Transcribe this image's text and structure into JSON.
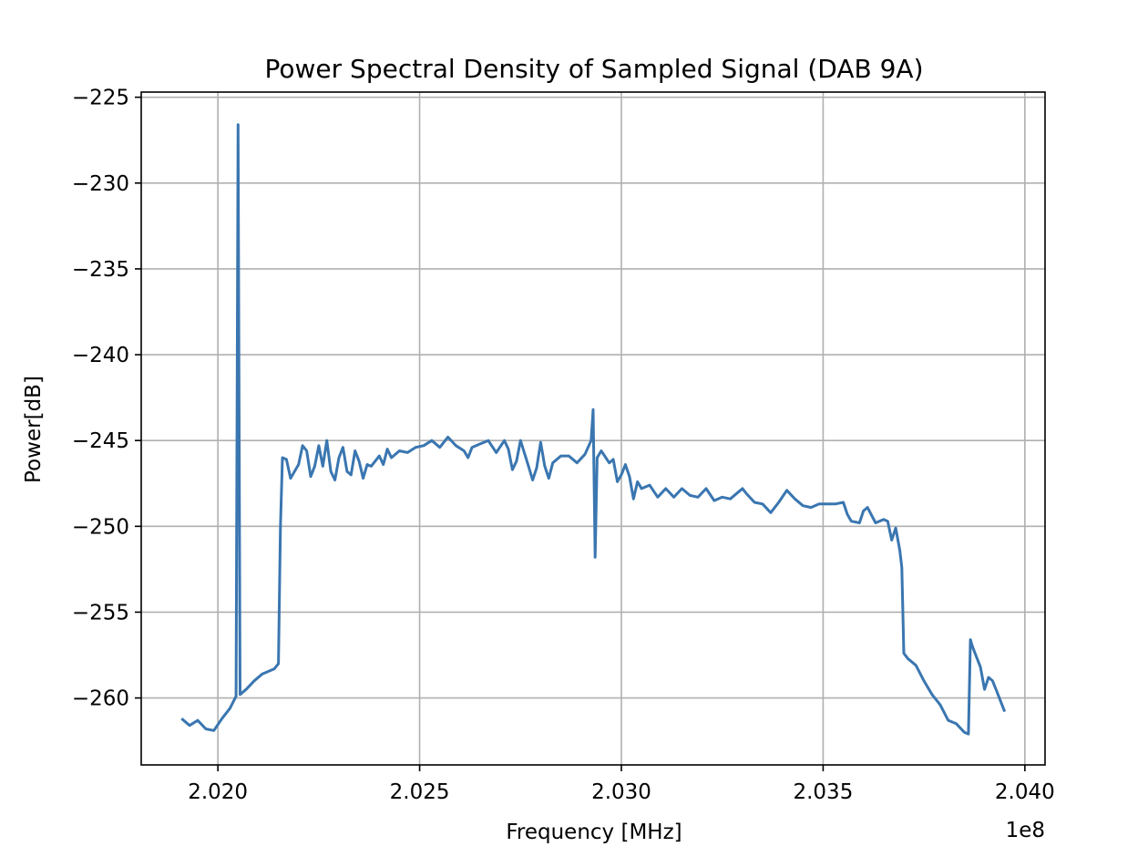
{
  "chart_data": {
    "type": "line",
    "title": "Power Spectral Density of Sampled Signal (DAB 9A)",
    "xlabel": "Frequency [MHz]",
    "ylabel": "Power[dB]",
    "x_offset_label": "1e8",
    "xlim": [
      2.0181,
      2.0405
    ],
    "ylim": [
      -263.9,
      -224.7
    ],
    "grid": true,
    "line_color": "#3a76b0",
    "x_ticks": [
      {
        "value": 2.02,
        "label": "2.020"
      },
      {
        "value": 2.025,
        "label": "2.025"
      },
      {
        "value": 2.03,
        "label": "2.030"
      },
      {
        "value": 2.035,
        "label": "2.035"
      },
      {
        "value": 2.04,
        "label": "2.040"
      }
    ],
    "y_ticks": [
      {
        "value": -225,
        "label": "−225"
      },
      {
        "value": -230,
        "label": "−230"
      },
      {
        "value": -235,
        "label": "−235"
      },
      {
        "value": -240,
        "label": "−240"
      },
      {
        "value": -245,
        "label": "−245"
      },
      {
        "value": -250,
        "label": "−250"
      },
      {
        "value": -255,
        "label": "−255"
      },
      {
        "value": -260,
        "label": "−260"
      }
    ],
    "series": [
      {
        "x": [
          2.0191,
          2.0193,
          2.0195,
          2.0197,
          2.0199,
          2.0201,
          2.0203,
          2.02045,
          2.0205,
          2.02055,
          2.0207,
          2.0209,
          2.0211,
          2.0213,
          2.0214,
          2.0215,
          2.02155,
          2.0216,
          2.0217,
          2.0218,
          2.022,
          2.0221,
          2.0222,
          2.0223,
          2.0224,
          2.0225,
          2.0226,
          2.0227,
          2.0228,
          2.0229,
          2.023,
          2.0231,
          2.0232,
          2.0233,
          2.0234,
          2.0235,
          2.0236,
          2.0237,
          2.0238,
          2.024,
          2.0241,
          2.0242,
          2.0243,
          2.0245,
          2.0247,
          2.0249,
          2.0251,
          2.0253,
          2.0255,
          2.0257,
          2.0259,
          2.0261,
          2.0262,
          2.0263,
          2.0265,
          2.0267,
          2.0269,
          2.0271,
          2.0272,
          2.0273,
          2.0274,
          2.0275,
          2.0277,
          2.0278,
          2.0279,
          2.028,
          2.0281,
          2.0282,
          2.0283,
          2.0285,
          2.0287,
          2.0289,
          2.0291,
          2.02925,
          2.0293,
          2.02935,
          2.0294,
          2.0295,
          2.0297,
          2.0298,
          2.0299,
          2.03,
          2.0301,
          2.0302,
          2.0303,
          2.0304,
          2.0305,
          2.0307,
          2.0309,
          2.0311,
          2.0313,
          2.0315,
          2.0317,
          2.0319,
          2.0321,
          2.0323,
          2.0325,
          2.0327,
          2.0329,
          2.033,
          2.0331,
          2.0333,
          2.0335,
          2.0337,
          2.0339,
          2.0341,
          2.0343,
          2.0345,
          2.0347,
          2.0349,
          2.0351,
          2.0353,
          2.0355,
          2.0356,
          2.0357,
          2.0359,
          2.036,
          2.0361,
          2.0363,
          2.0365,
          2.0366,
          2.0367,
          2.0368,
          2.0369,
          2.03695,
          2.037,
          2.0371,
          2.0373,
          2.0375,
          2.0377,
          2.0379,
          2.0381,
          2.0383,
          2.0385,
          2.0386,
          2.03865,
          2.0387,
          2.0388,
          2.0389,
          2.039,
          2.0391,
          2.0392,
          2.0393,
          2.0394,
          2.0395
        ],
        "y": [
          -261.2,
          -261.6,
          -261.3,
          -261.8,
          -261.9,
          -261.2,
          -260.6,
          -259.9,
          -226.6,
          -259.8,
          -259.5,
          -259.0,
          -258.6,
          -258.4,
          -258.3,
          -258.0,
          -250.0,
          -246.0,
          -246.1,
          -247.2,
          -246.4,
          -245.3,
          -245.6,
          -247.1,
          -246.5,
          -245.3,
          -246.5,
          -245.0,
          -246.8,
          -247.3,
          -246.0,
          -245.4,
          -246.8,
          -247.0,
          -245.6,
          -246.2,
          -247.2,
          -246.4,
          -246.5,
          -245.9,
          -246.4,
          -245.5,
          -246.0,
          -245.6,
          -245.7,
          -245.4,
          -245.3,
          -245.0,
          -245.4,
          -244.8,
          -245.3,
          -245.6,
          -246.0,
          -245.4,
          -245.2,
          -245.0,
          -245.7,
          -245.0,
          -245.5,
          -246.7,
          -246.2,
          -245.0,
          -246.5,
          -247.3,
          -246.6,
          -245.1,
          -246.5,
          -247.2,
          -246.3,
          -245.9,
          -245.9,
          -246.3,
          -245.8,
          -245.0,
          -243.2,
          -251.8,
          -246.0,
          -245.6,
          -246.3,
          -246.1,
          -247.4,
          -247.0,
          -246.4,
          -247.1,
          -248.4,
          -247.4,
          -247.8,
          -247.6,
          -248.3,
          -247.8,
          -248.3,
          -247.8,
          -248.2,
          -248.3,
          -247.8,
          -248.5,
          -248.3,
          -248.4,
          -248.0,
          -247.8,
          -248.1,
          -248.6,
          -248.7,
          -249.2,
          -248.6,
          -247.9,
          -248.4,
          -248.8,
          -248.9,
          -248.7,
          -248.7,
          -248.7,
          -248.6,
          -249.3,
          -249.7,
          -249.8,
          -249.1,
          -248.9,
          -249.8,
          -249.6,
          -249.7,
          -250.8,
          -250.1,
          -251.4,
          -252.4,
          -257.4,
          -257.7,
          -258.1,
          -259.0,
          -259.8,
          -260.4,
          -261.3,
          -261.5,
          -262.0,
          -262.1,
          -256.6,
          -257.0,
          -257.6,
          -258.2,
          -259.5,
          -258.8,
          -259.0,
          -259.6,
          -260.2,
          -260.8
        ]
      }
    ]
  }
}
